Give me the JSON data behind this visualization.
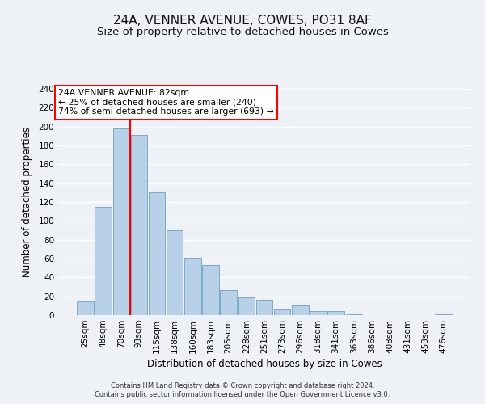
{
  "title": "24A, VENNER AVENUE, COWES, PO31 8AF",
  "subtitle": "Size of property relative to detached houses in Cowes",
  "xlabel": "Distribution of detached houses by size in Cowes",
  "ylabel": "Number of detached properties",
  "bar_labels": [
    "25sqm",
    "48sqm",
    "70sqm",
    "93sqm",
    "115sqm",
    "138sqm",
    "160sqm",
    "183sqm",
    "205sqm",
    "228sqm",
    "251sqm",
    "273sqm",
    "296sqm",
    "318sqm",
    "341sqm",
    "363sqm",
    "386sqm",
    "408sqm",
    "431sqm",
    "453sqm",
    "476sqm"
  ],
  "bar_values": [
    15,
    115,
    198,
    191,
    130,
    90,
    61,
    53,
    27,
    19,
    16,
    6,
    10,
    4,
    4,
    1,
    0,
    0,
    0,
    0,
    1
  ],
  "bar_color": "#b8d0e8",
  "bar_edge_color": "#7aaac8",
  "ylim": [
    0,
    240
  ],
  "yticks": [
    0,
    20,
    40,
    60,
    80,
    100,
    120,
    140,
    160,
    180,
    200,
    220,
    240
  ],
  "red_line_x": 2.5,
  "annotation_title": "24A VENNER AVENUE: 82sqm",
  "annotation_line1": "← 25% of detached houses are smaller (240)",
  "annotation_line2": "74% of semi-detached houses are larger (693) →",
  "footer_line1": "Contains HM Land Registry data © Crown copyright and database right 2024.",
  "footer_line2": "Contains public sector information licensed under the Open Government Licence v3.0.",
  "background_color": "#eef2f7",
  "grid_color": "#ffffff",
  "title_fontsize": 11,
  "subtitle_fontsize": 9.5,
  "axis_fontsize": 8.5,
  "tick_fontsize": 7.5
}
